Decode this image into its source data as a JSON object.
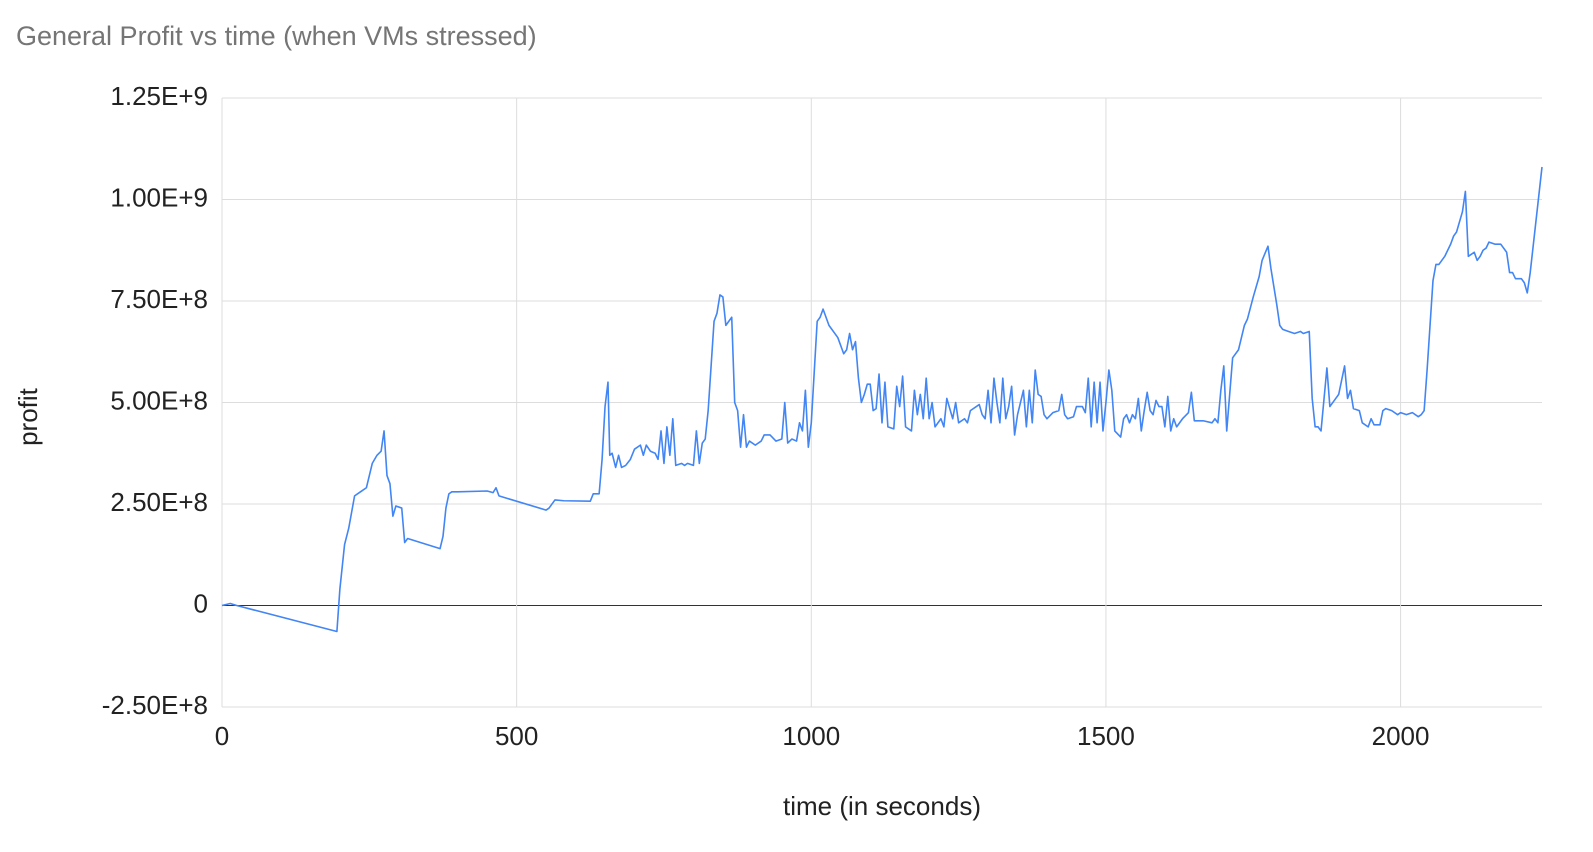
{
  "chart_data": {
    "type": "line",
    "title": "General Profit vs time (when VMs stressed)",
    "x_label": "time (in seconds)",
    "y_label": "profit",
    "color": "#4285f4",
    "grid": true,
    "xlim": [
      0,
      2240
    ],
    "xticks": [
      0,
      500,
      1000,
      1500,
      2000
    ],
    "ylim": [
      -250000000,
      1250000000
    ],
    "yticks": [
      {
        "value": -250000000,
        "label": "-2.50E+8"
      },
      0,
      {
        "value": 250000000,
        "label": "2.50E+8"
      },
      {
        "value": 500000000,
        "label": "5.00E+8"
      },
      {
        "value": 750000000,
        "label": "7.50E+8"
      },
      {
        "value": 1000000000,
        "label": "1.00E+9"
      },
      {
        "value": 1250000000,
        "label": "1.25E+9"
      }
    ],
    "x": [
      0,
      14,
      25,
      195,
      200,
      208,
      215,
      225,
      235,
      245,
      255,
      263,
      270,
      275,
      280,
      285,
      290,
      295,
      305,
      310,
      315,
      370,
      375,
      380,
      385,
      390,
      400,
      450,
      460,
      465,
      470,
      550,
      555,
      565,
      580,
      625,
      630,
      640,
      645,
      650,
      655,
      658,
      662,
      668,
      673,
      678,
      685,
      693,
      700,
      710,
      715,
      720,
      727,
      735,
      740,
      745,
      750,
      755,
      760,
      765,
      770,
      780,
      785,
      790,
      800,
      805,
      810,
      815,
      820,
      825,
      835,
      840,
      845,
      850,
      855,
      865,
      870,
      875,
      880,
      885,
      890,
      895,
      905,
      915,
      920,
      930,
      940,
      950,
      955,
      960,
      967,
      975,
      980,
      985,
      990,
      995,
      1000,
      1010,
      1015,
      1020,
      1030,
      1045,
      1055,
      1060,
      1065,
      1070,
      1075,
      1080,
      1085,
      1090,
      1095,
      1100,
      1105,
      1110,
      1115,
      1120,
      1125,
      1130,
      1140,
      1145,
      1150,
      1155,
      1160,
      1170,
      1175,
      1180,
      1185,
      1190,
      1195,
      1200,
      1205,
      1210,
      1220,
      1225,
      1230,
      1240,
      1245,
      1250,
      1260,
      1265,
      1270,
      1285,
      1290,
      1295,
      1300,
      1305,
      1310,
      1315,
      1320,
      1325,
      1330,
      1335,
      1340,
      1345,
      1350,
      1360,
      1365,
      1370,
      1375,
      1380,
      1385,
      1390,
      1395,
      1400,
      1410,
      1420,
      1425,
      1430,
      1435,
      1445,
      1450,
      1460,
      1465,
      1470,
      1475,
      1480,
      1485,
      1490,
      1495,
      1500,
      1505,
      1510,
      1515,
      1525,
      1530,
      1535,
      1540,
      1545,
      1550,
      1555,
      1560,
      1565,
      1570,
      1575,
      1580,
      1585,
      1590,
      1595,
      1600,
      1605,
      1610,
      1615,
      1620,
      1630,
      1640,
      1645,
      1650,
      1665,
      1680,
      1685,
      1690,
      1695,
      1700,
      1705,
      1715,
      1725,
      1735,
      1740,
      1750,
      1760,
      1765,
      1775,
      1780,
      1790,
      1795,
      1800,
      1810,
      1820,
      1830,
      1835,
      1845,
      1850,
      1855,
      1860,
      1865,
      1875,
      1880,
      1890,
      1895,
      1905,
      1910,
      1915,
      1920,
      1930,
      1935,
      1945,
      1950,
      1955,
      1965,
      1970,
      1975,
      1985,
      1995,
      2000,
      2010,
      2020,
      2030,
      2035,
      2040,
      2045,
      2055,
      2060,
      2065,
      2075,
      2085,
      2090,
      2095,
      2105,
      2110,
      2115,
      2125,
      2130,
      2135,
      2140,
      2145,
      2150,
      2160,
      2170,
      2180,
      2185,
      2190,
      2195,
      2205,
      2210,
      2215,
      2220,
      2240
    ],
    "values": [
      0,
      5000000.0,
      0,
      -64000000.0,
      40000000.0,
      150000000.0,
      190000000.0,
      270000000.0,
      280000000.0,
      290000000.0,
      350000000.0,
      370000000.0,
      380000000.0,
      430000000.0,
      320000000.0,
      300000000.0,
      220000000.0,
      245000000.0,
      240000000.0,
      155000000.0,
      165000000.0,
      140000000.0,
      170000000.0,
      240000000.0,
      275000000.0,
      280000000.0,
      280000000.0,
      282000000.0,
      278000000.0,
      290000000.0,
      270000000.0,
      235000000.0,
      240000000.0,
      260000000.0,
      258000000.0,
      257000000.0,
      275000000.0,
      275000000.0,
      360000000.0,
      490000000.0,
      550000000.0,
      370000000.0,
      375000000.0,
      340000000.0,
      370000000.0,
      340000000.0,
      345000000.0,
      360000000.0,
      385000000.0,
      395000000.0,
      370000000.0,
      395000000.0,
      380000000.0,
      375000000.0,
      360000000.0,
      430000000.0,
      350000000.0,
      440000000.0,
      370000000.0,
      460000000.0,
      345000000.0,
      350000000.0,
      345000000.0,
      350000000.0,
      345000000.0,
      430000000.0,
      350000000.0,
      400000000.0,
      410000000.0,
      480000000.0,
      700000000.0,
      720000000.0,
      765000000.0,
      760000000.0,
      690000000.0,
      710000000.0,
      500000000.0,
      480000000.0,
      390000000.0,
      470000000.0,
      390000000.0,
      405000000.0,
      395000000.0,
      405000000.0,
      420000000.0,
      420000000.0,
      405000000.0,
      410000000.0,
      500000000.0,
      400000000.0,
      410000000.0,
      405000000.0,
      450000000.0,
      430000000.0,
      530000000.0,
      390000000.0,
      450000000.0,
      700000000.0,
      710000000.0,
      730000000.0,
      690000000.0,
      660000000.0,
      620000000.0,
      630000000.0,
      670000000.0,
      630000000.0,
      650000000.0,
      560000000.0,
      500000000.0,
      520000000.0,
      545000000.0,
      545000000.0,
      480000000.0,
      485000000.0,
      570000000.0,
      450000000.0,
      550000000.0,
      440000000.0,
      435000000.0,
      540000000.0,
      490000000.0,
      565000000.0,
      440000000.0,
      430000000.0,
      530000000.0,
      470000000.0,
      520000000.0,
      460000000.0,
      560000000.0,
      460000000.0,
      500000000.0,
      440000000.0,
      460000000.0,
      440000000.0,
      510000000.0,
      460000000.0,
      500000000.0,
      450000000.0,
      460000000.0,
      450000000.0,
      480000000.0,
      495000000.0,
      470000000.0,
      460000000.0,
      530000000.0,
      450000000.0,
      560000000.0,
      500000000.0,
      450000000.0,
      560000000.0,
      460000000.0,
      490000000.0,
      540000000.0,
      420000000.0,
      470000000.0,
      530000000.0,
      440000000.0,
      530000000.0,
      450000000.0,
      580000000.0,
      520000000.0,
      515000000.0,
      470000000.0,
      460000000.0,
      475000000.0,
      480000000.0,
      520000000.0,
      470000000.0,
      460000000.0,
      465000000.0,
      490000000.0,
      490000000.0,
      475000000.0,
      560000000.0,
      440000000.0,
      550000000.0,
      450000000.0,
      550000000.0,
      430000000.0,
      500000000.0,
      580000000.0,
      530000000.0,
      430000000.0,
      415000000.0,
      460000000.0,
      470000000.0,
      450000000.0,
      470000000.0,
      460000000.0,
      510000000.0,
      430000000.0,
      480000000.0,
      525000000.0,
      480000000.0,
      470000000.0,
      505000000.0,
      490000000.0,
      490000000.0,
      440000000.0,
      515000000.0,
      430000000.0,
      460000000.0,
      440000000.0,
      460000000.0,
      475000000.0,
      525000000.0,
      455000000.0,
      455000000.0,
      450000000.0,
      460000000.0,
      450000000.0,
      530000000.0,
      590000000.0,
      430000000.0,
      610000000.0,
      630000000.0,
      690000000.0,
      705000000.0,
      760000000.0,
      810000000.0,
      850000000.0,
      885000000.0,
      830000000.0,
      740000000.0,
      690000000.0,
      680000000.0,
      675000000.0,
      670000000.0,
      675000000.0,
      670000000.0,
      675000000.0,
      510000000.0,
      440000000.0,
      440000000.0,
      430000000.0,
      585000000.0,
      490000000.0,
      510000000.0,
      520000000.0,
      590000000.0,
      510000000.0,
      530000000.0,
      485000000.0,
      480000000.0,
      450000000.0,
      440000000.0,
      460000000.0,
      445000000.0,
      445000000.0,
      480000000.0,
      485000000.0,
      480000000.0,
      470000000.0,
      475000000.0,
      470000000.0,
      475000000.0,
      465000000.0,
      470000000.0,
      480000000.0,
      580000000.0,
      800000000.0,
      840000000.0,
      840000000.0,
      860000000.0,
      890000000.0,
      910000000.0,
      920000000.0,
      970000000.0,
      1020000000.0,
      860000000.0,
      870000000.0,
      850000000.0,
      860000000.0,
      875000000.0,
      880000000.0,
      895000000.0,
      890000000.0,
      890000000.0,
      870000000.0,
      820000000.0,
      820000000.0,
      805000000.0,
      805000000.0,
      795000000.0,
      770000000.0,
      820000000.0,
      1080000000.0
    ]
  }
}
